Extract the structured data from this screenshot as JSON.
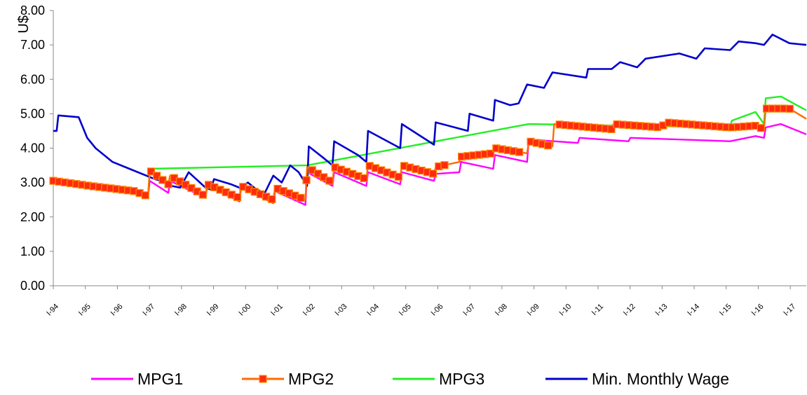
{
  "chart_data": {
    "type": "line",
    "ylabel": "U$",
    "ylim": [
      0,
      8
    ],
    "y_ticks": [
      "0.00",
      "1.00",
      "2.00",
      "3.00",
      "4.00",
      "5.00",
      "6.00",
      "7.00",
      "8.00"
    ],
    "x_tick_labels": [
      "I-94",
      "I-95",
      "I-96",
      "I-97",
      "I-98",
      "I-99",
      "I-00",
      "I-01",
      "I-02",
      "I-03",
      "I-04",
      "I-05",
      "I-06",
      "I-07",
      "I-08",
      "I-09",
      "I-10",
      "I-11",
      "I-12",
      "I-13",
      "I-14",
      "I-15",
      "I-16",
      "I-17"
    ],
    "x_tick_labels_note": "tick labels are rendered rotated and illegible in the original",
    "grid": false,
    "legend_position": "bottom",
    "series": [
      {
        "name": "MPG1",
        "color": "#ff00ff",
        "marker": "none",
        "points": [
          [
            0,
            3.05
          ],
          [
            2.2,
            2.95
          ],
          [
            4.8,
            2.75
          ],
          [
            5.6,
            2.6
          ],
          [
            5.7,
            3.05
          ],
          [
            6.8,
            2.7
          ],
          [
            6.9,
            3.05
          ],
          [
            9,
            2.55
          ],
          [
            9.1,
            2.9
          ],
          [
            11,
            2.45
          ],
          [
            11.1,
            2.85
          ],
          [
            13,
            2.4
          ],
          [
            13.1,
            2.75
          ],
          [
            14.9,
            2.35
          ],
          [
            15,
            3.3
          ],
          [
            16.5,
            2.9
          ],
          [
            16.6,
            3.3
          ],
          [
            18.5,
            2.9
          ],
          [
            18.6,
            3.3
          ],
          [
            20.5,
            2.95
          ],
          [
            20.6,
            3.3
          ],
          [
            22.5,
            3.05
          ],
          [
            22.6,
            3.25
          ],
          [
            24,
            3.3
          ],
          [
            24.1,
            3.6
          ],
          [
            26,
            3.4
          ],
          [
            26.1,
            3.8
          ],
          [
            28,
            3.6
          ],
          [
            28.1,
            4.25
          ],
          [
            31,
            4.15
          ],
          [
            31.1,
            4.3
          ],
          [
            34,
            4.2
          ],
          [
            34.1,
            4.3
          ],
          [
            37,
            4.25
          ],
          [
            40,
            4.2
          ],
          [
            41.5,
            4.35
          ],
          [
            42,
            4.3
          ],
          [
            42.1,
            4.6
          ],
          [
            43,
            4.7
          ],
          [
            44,
            4.5
          ],
          [
            44.5,
            4.4
          ]
        ]
      },
      {
        "name": "MPG2",
        "color": "#ff6a00",
        "marker_fill": "#ff2a10",
        "marker": "square",
        "points": [
          [
            0,
            3.05
          ],
          [
            2.2,
            2.9
          ],
          [
            4.8,
            2.75
          ],
          [
            5.6,
            2.6
          ],
          [
            5.7,
            3.35
          ],
          [
            6.8,
            2.95
          ],
          [
            6.9,
            3.2
          ],
          [
            9,
            2.6
          ],
          [
            9.1,
            2.95
          ],
          [
            11,
            2.55
          ],
          [
            11.1,
            2.9
          ],
          [
            13,
            2.5
          ],
          [
            13.1,
            2.85
          ],
          [
            14.9,
            2.5
          ],
          [
            15,
            3.45
          ],
          [
            16.5,
            3.0
          ],
          [
            16.6,
            3.45
          ],
          [
            18.5,
            3.1
          ],
          [
            18.6,
            3.5
          ],
          [
            20.5,
            3.15
          ],
          [
            20.6,
            3.5
          ],
          [
            22.5,
            3.25
          ],
          [
            22.6,
            3.45
          ],
          [
            24,
            3.6
          ],
          [
            24.1,
            3.75
          ],
          [
            26,
            3.85
          ],
          [
            26.1,
            4.0
          ],
          [
            28,
            3.85
          ],
          [
            28.1,
            4.2
          ],
          [
            29.5,
            4.05
          ],
          [
            29.6,
            4.7
          ],
          [
            33,
            4.55
          ],
          [
            33.1,
            4.7
          ],
          [
            36,
            4.6
          ],
          [
            36.1,
            4.75
          ],
          [
            40,
            4.6
          ],
          [
            41.5,
            4.65
          ],
          [
            42,
            4.55
          ],
          [
            42.1,
            5.15
          ],
          [
            43.5,
            5.15
          ],
          [
            44.5,
            4.85
          ]
        ]
      },
      {
        "name": "MPG3",
        "color": "#22ee22",
        "marker": "none",
        "points": [
          [
            0,
            3.05
          ],
          [
            5.6,
            2.6
          ],
          [
            5.7,
            3.4
          ],
          [
            15,
            3.5
          ],
          [
            28.1,
            4.7
          ],
          [
            40,
            4.6
          ],
          [
            40.1,
            4.8
          ],
          [
            41.5,
            5.05
          ],
          [
            42,
            4.7
          ],
          [
            42.1,
            5.45
          ],
          [
            43,
            5.5
          ],
          [
            44.5,
            5.1
          ]
        ]
      },
      {
        "name": "Min. Monthly Wage",
        "color": "#0000cc",
        "marker": "small-dot",
        "points": [
          [
            0,
            4.5
          ],
          [
            0.2,
            4.5
          ],
          [
            0.3,
            4.95
          ],
          [
            1.5,
            4.9
          ],
          [
            2.0,
            4.3
          ],
          [
            2.5,
            4.0
          ],
          [
            3.5,
            3.6
          ],
          [
            4.5,
            3.4
          ],
          [
            6.0,
            3.1
          ],
          [
            6.8,
            3.0
          ],
          [
            7.0,
            2.9
          ],
          [
            7.5,
            2.85
          ],
          [
            8.0,
            3.3
          ],
          [
            9.0,
            2.85
          ],
          [
            9.3,
            2.8
          ],
          [
            9.5,
            3.1
          ],
          [
            10.5,
            2.95
          ],
          [
            11.0,
            2.85
          ],
          [
            11.5,
            3.0
          ],
          [
            12.0,
            2.8
          ],
          [
            12.5,
            2.7
          ],
          [
            13.0,
            3.2
          ],
          [
            13.5,
            3.0
          ],
          [
            14.0,
            3.5
          ],
          [
            14.5,
            3.3
          ],
          [
            15.0,
            2.9
          ],
          [
            15.1,
            4.05
          ],
          [
            16.0,
            3.7
          ],
          [
            16.5,
            3.5
          ],
          [
            16.6,
            4.2
          ],
          [
            18.0,
            3.8
          ],
          [
            18.5,
            3.6
          ],
          [
            18.6,
            4.5
          ],
          [
            20.5,
            4.0
          ],
          [
            20.6,
            4.7
          ],
          [
            22.5,
            4.1
          ],
          [
            22.6,
            4.75
          ],
          [
            24.5,
            4.5
          ],
          [
            24.6,
            5.0
          ],
          [
            26.0,
            4.8
          ],
          [
            26.1,
            5.4
          ],
          [
            27.0,
            5.25
          ],
          [
            27.5,
            5.3
          ],
          [
            28.0,
            5.85
          ],
          [
            29.0,
            5.75
          ],
          [
            29.5,
            6.2
          ],
          [
            31.5,
            6.05
          ],
          [
            31.6,
            6.3
          ],
          [
            33.0,
            6.3
          ],
          [
            33.5,
            6.5
          ],
          [
            34.5,
            6.35
          ],
          [
            35.0,
            6.6
          ],
          [
            37.0,
            6.75
          ],
          [
            38.0,
            6.6
          ],
          [
            38.5,
            6.9
          ],
          [
            40.0,
            6.85
          ],
          [
            40.5,
            7.1
          ],
          [
            41.5,
            7.05
          ],
          [
            42.0,
            7.0
          ],
          [
            42.5,
            7.3
          ],
          [
            43.5,
            7.05
          ],
          [
            44.5,
            7.0
          ]
        ]
      }
    ],
    "x_range": [
      0,
      44.5
    ]
  }
}
